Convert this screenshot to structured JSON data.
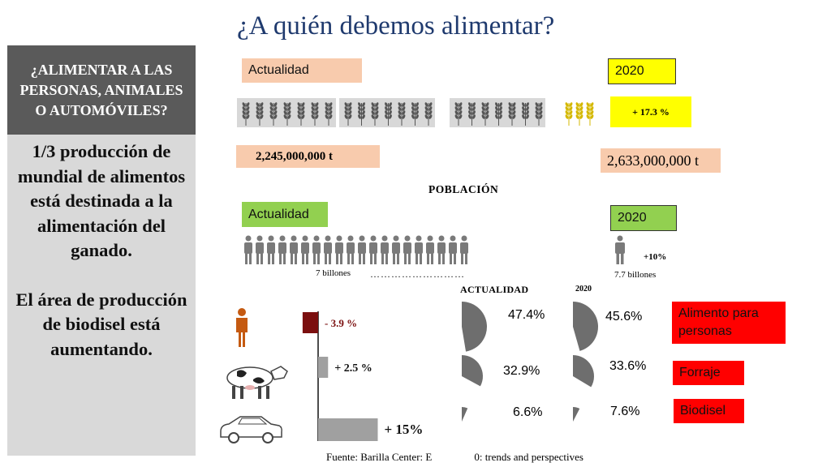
{
  "title": "¿A quién debemos alimentar?",
  "sidebar": {
    "heading": "¿ALIMENTAR A LAS PERSONAS, ANIMALES O AUTOMÓVILES?",
    "paragraph1": "1/3 producción de mundial de alimentos está destinada a la alimentación del ganado.",
    "paragraph2": "El área de producción de biodisel está aumentando."
  },
  "production": {
    "current_label": "Actualidad",
    "future_label": "2020",
    "growth": "+ 17.3 %",
    "current_value": "2,245,000,000 t",
    "future_value": "2,633,000,000 t"
  },
  "population": {
    "heading": "POBLACIÓN",
    "current_label": "Actualidad",
    "future_label": "2020",
    "current_count": "7 billones",
    "dots": "………………………",
    "growth": "+10%",
    "future_count": "7.7 billones"
  },
  "change_bars": [
    {
      "icon": "person-icon",
      "label": "- 3.9 %",
      "value": -3.9,
      "color": "#7b0f0f"
    },
    {
      "icon": "cow-icon",
      "label": "+ 2.5 %",
      "value": 2.5,
      "color": "#a0a0a0"
    },
    {
      "icon": "car-icon",
      "label": "+ 15%",
      "value": 15,
      "color": "#a0a0a0"
    }
  ],
  "shares": {
    "current_heading": "ACTUALIDAD",
    "future_heading": "2020",
    "rows": [
      {
        "category": "Alimento para personas",
        "current": "47.4%",
        "future": "45.6%",
        "current_value": 47.4,
        "future_value": 45.6
      },
      {
        "category": "Forraje",
        "current": "32.9%",
        "future": "33.6%",
        "current_value": 32.9,
        "future_value": 33.6
      },
      {
        "category": "Biodisel",
        "current": "6.6%",
        "future": "7.6%",
        "current_value": 6.6,
        "future_value": 7.6
      }
    ]
  },
  "source": "Fuente: Barilla Center: E",
  "source_end": "0: trends and perspectives",
  "colors": {
    "pie": "#6e6e6e",
    "category_box": "#ff0000",
    "title": "#1f3a6e"
  }
}
